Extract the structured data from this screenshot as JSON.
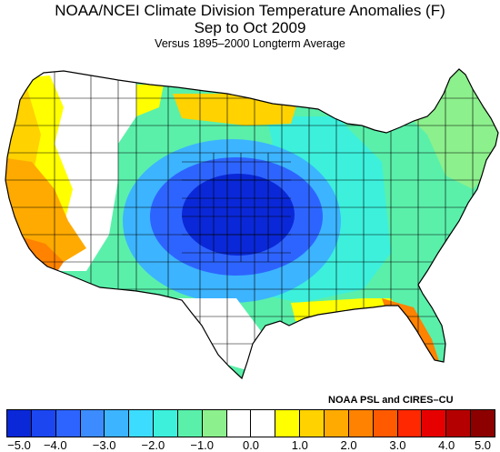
{
  "header": {
    "title": "NOAA/NCEI Climate Division Temperature Anomalies (F)",
    "period": "Sep to Oct 2009",
    "baseline": "Versus 1895–2000 Longterm Average"
  },
  "credit": "NOAA PSL and CIRES–CU",
  "legend": {
    "colors": [
      "#0a28d8",
      "#1c46f0",
      "#2d64ff",
      "#3c8cff",
      "#3cb4ff",
      "#3cdcff",
      "#3cf0dc",
      "#5af0aa",
      "#8cf08c",
      "#ffffff",
      "#ffffff",
      "#ffff00",
      "#ffd200",
      "#ffaa00",
      "#ff8200",
      "#ff5a00",
      "#ff2800",
      "#e60000",
      "#b40000",
      "#8c0000"
    ],
    "tick_labels": [
      "−5.0",
      "−4.0",
      "−3.0",
      "−2.0",
      "−1.0",
      "0.0",
      "1.0",
      "2.0",
      "3.0",
      "4.0",
      "5.0"
    ]
  },
  "map": {
    "regions": [
      {
        "name": "pacific-northwest",
        "anomaly": 0.5,
        "color": "#ffff00"
      },
      {
        "name": "oregon-interior",
        "anomaly": 1.5,
        "color": "#ffd200"
      },
      {
        "name": "california-coast",
        "anomaly": 2.5,
        "color": "#ffaa00"
      },
      {
        "name": "southern-california",
        "anomaly": 3.5,
        "color": "#ff8200"
      },
      {
        "name": "great-basin",
        "anomaly": 1.0,
        "color": "#ffff00"
      },
      {
        "name": "mountain-neutral",
        "anomaly": 0.0,
        "color": "#ffffff"
      },
      {
        "name": "northern-plains",
        "anomaly": -1.5,
        "color": "#5af0aa"
      },
      {
        "name": "central-plains-cold-core",
        "anomaly": -4.5,
        "color": "#0a28d8"
      },
      {
        "name": "plains-inner-ring",
        "anomaly": -3.5,
        "color": "#2d64ff"
      },
      {
        "name": "plains-outer-ring",
        "anomaly": -2.5,
        "color": "#3cb4ff"
      },
      {
        "name": "midwest-ohio-valley",
        "anomaly": -1.8,
        "color": "#3cf0dc"
      },
      {
        "name": "eastern-seaboard",
        "anomaly": -1.2,
        "color": "#5af0aa"
      },
      {
        "name": "new-england",
        "anomaly": -0.8,
        "color": "#8cf08c"
      },
      {
        "name": "upper-michigan",
        "anomaly": 1.5,
        "color": "#ffd200"
      },
      {
        "name": "south-texas",
        "anomaly": 0.0,
        "color": "#ffffff"
      },
      {
        "name": "gulf-coast",
        "anomaly": 1.0,
        "color": "#ffff00"
      },
      {
        "name": "florida",
        "anomaly": 3.0,
        "color": "#ff8200"
      }
    ]
  }
}
